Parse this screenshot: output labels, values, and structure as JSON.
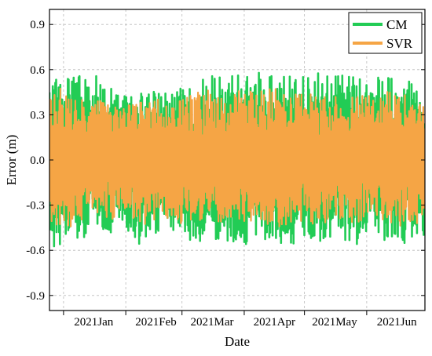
{
  "chart_data": {
    "type": "line",
    "xlabel": "Date",
    "ylabel": "Error (m)",
    "x_range": [
      "2020-12-25",
      "2021-06-30"
    ],
    "ylim": [
      -1.0,
      1.0
    ],
    "y_ticks": [
      -0.9,
      -0.6,
      -0.3,
      0.0,
      0.3,
      0.6,
      0.9
    ],
    "y_tick_labels": [
      "-0.9",
      "-0.6",
      "-0.3",
      "0.0",
      "0.3",
      "0.6",
      "0.9"
    ],
    "x_ticks": [
      "2021-01-01",
      "2021-02-01",
      "2021-03-01",
      "2021-04-01",
      "2021-05-01",
      "2021-06-01"
    ],
    "x_tick_labels": [
      "2021Jan",
      "2021Feb",
      "2021Mar",
      "2021Apr",
      "2021May",
      "2021Jun"
    ],
    "grid": true,
    "legend_position": "top-right",
    "series": [
      {
        "name": "CM",
        "color": "#22cc55",
        "dates": [
          "2020-12-25",
          "2020-12-29",
          "2021-01-02",
          "2021-01-06",
          "2021-01-10",
          "2021-01-14",
          "2021-01-18",
          "2021-01-22",
          "2021-01-26",
          "2021-01-30",
          "2021-02-03",
          "2021-02-07",
          "2021-02-11",
          "2021-02-15",
          "2021-02-19",
          "2021-02-23",
          "2021-02-27",
          "2021-03-03",
          "2021-03-07",
          "2021-03-11",
          "2021-03-15",
          "2021-03-19",
          "2021-03-23",
          "2021-03-27",
          "2021-03-31",
          "2021-04-04",
          "2021-04-08",
          "2021-04-12",
          "2021-04-16",
          "2021-04-20",
          "2021-04-24",
          "2021-04-28",
          "2021-05-02",
          "2021-05-06",
          "2021-05-10",
          "2021-05-14",
          "2021-05-18",
          "2021-05-22",
          "2021-05-26",
          "2021-05-30",
          "2021-06-03",
          "2021-06-07",
          "2021-06-11",
          "2021-06-15",
          "2021-06-19",
          "2021-06-23",
          "2021-06-27",
          "2021-06-30"
        ],
        "upper": [
          0.5,
          0.55,
          0.56,
          0.58,
          0.57,
          0.55,
          0.56,
          0.46,
          0.5,
          0.44,
          0.44,
          0.44,
          0.47,
          0.46,
          0.45,
          0.43,
          0.48,
          0.47,
          0.56,
          0.55,
          0.58,
          0.57,
          0.56,
          0.57,
          0.56,
          0.58,
          0.58,
          0.57,
          0.57,
          0.59,
          0.56,
          0.57,
          0.59,
          0.58,
          0.57,
          0.55,
          0.56,
          0.57,
          0.57,
          0.56,
          0.57,
          0.56,
          0.57,
          0.55,
          0.53,
          0.54,
          0.46,
          0.33
        ],
        "lower": [
          -0.58,
          -0.57,
          -0.58,
          -0.56,
          -0.55,
          -0.46,
          -0.45,
          -0.48,
          -0.5,
          -0.4,
          -0.55,
          -0.56,
          -0.55,
          -0.53,
          -0.46,
          -0.49,
          -0.51,
          -0.56,
          -0.58,
          -0.55,
          -0.49,
          -0.57,
          -0.55,
          -0.57,
          -0.58,
          -0.56,
          -0.51,
          -0.55,
          -0.58,
          -0.57,
          -0.56,
          -0.56,
          -0.51,
          -0.57,
          -0.59,
          -0.52,
          -0.5,
          -0.54,
          -0.57,
          -0.55,
          -0.45,
          -0.52,
          -0.55,
          -0.56,
          -0.57,
          -0.55,
          -0.57,
          -0.58
        ]
      },
      {
        "name": "SVR",
        "color": "#f5a545",
        "dates": [
          "2020-12-25",
          "2020-12-29",
          "2021-01-02",
          "2021-01-06",
          "2021-01-10",
          "2021-01-14",
          "2021-01-18",
          "2021-01-22",
          "2021-01-26",
          "2021-01-30",
          "2021-02-03",
          "2021-02-07",
          "2021-02-11",
          "2021-02-15",
          "2021-02-19",
          "2021-02-23",
          "2021-02-27",
          "2021-03-03",
          "2021-03-07",
          "2021-03-11",
          "2021-03-15",
          "2021-03-19",
          "2021-03-23",
          "2021-03-27",
          "2021-03-31",
          "2021-04-04",
          "2021-04-08",
          "2021-04-12",
          "2021-04-16",
          "2021-04-20",
          "2021-04-24",
          "2021-04-28",
          "2021-05-02",
          "2021-05-06",
          "2021-05-10",
          "2021-05-14",
          "2021-05-18",
          "2021-05-22",
          "2021-05-26",
          "2021-05-30",
          "2021-06-03",
          "2021-06-07",
          "2021-06-11",
          "2021-06-15",
          "2021-06-19",
          "2021-06-23",
          "2021-06-27",
          "2021-06-30"
        ],
        "upper": [
          0.45,
          0.49,
          0.45,
          0.48,
          0.47,
          0.41,
          0.42,
          0.4,
          0.39,
          0.35,
          0.37,
          0.4,
          0.43,
          0.41,
          0.4,
          0.38,
          0.4,
          0.42,
          0.46,
          0.45,
          0.47,
          0.45,
          0.43,
          0.46,
          0.46,
          0.47,
          0.46,
          0.47,
          0.48,
          0.46,
          0.45,
          0.44,
          0.45,
          0.44,
          0.46,
          0.44,
          0.45,
          0.47,
          0.45,
          0.45,
          0.42,
          0.45,
          0.47,
          0.47,
          0.46,
          0.41,
          0.4,
          0.36
        ],
        "lower": [
          -0.42,
          -0.46,
          -0.45,
          -0.44,
          -0.42,
          -0.34,
          -0.36,
          -0.38,
          -0.4,
          -0.3,
          -0.43,
          -0.44,
          -0.45,
          -0.42,
          -0.38,
          -0.4,
          -0.44,
          -0.45,
          -0.44,
          -0.4,
          -0.35,
          -0.42,
          -0.4,
          -0.44,
          -0.42,
          -0.42,
          -0.4,
          -0.43,
          -0.45,
          -0.44,
          -0.43,
          -0.42,
          -0.38,
          -0.44,
          -0.45,
          -0.36,
          -0.39,
          -0.42,
          -0.44,
          -0.42,
          -0.36,
          -0.41,
          -0.44,
          -0.45,
          -0.44,
          -0.42,
          -0.44,
          -0.36
        ]
      }
    ]
  }
}
